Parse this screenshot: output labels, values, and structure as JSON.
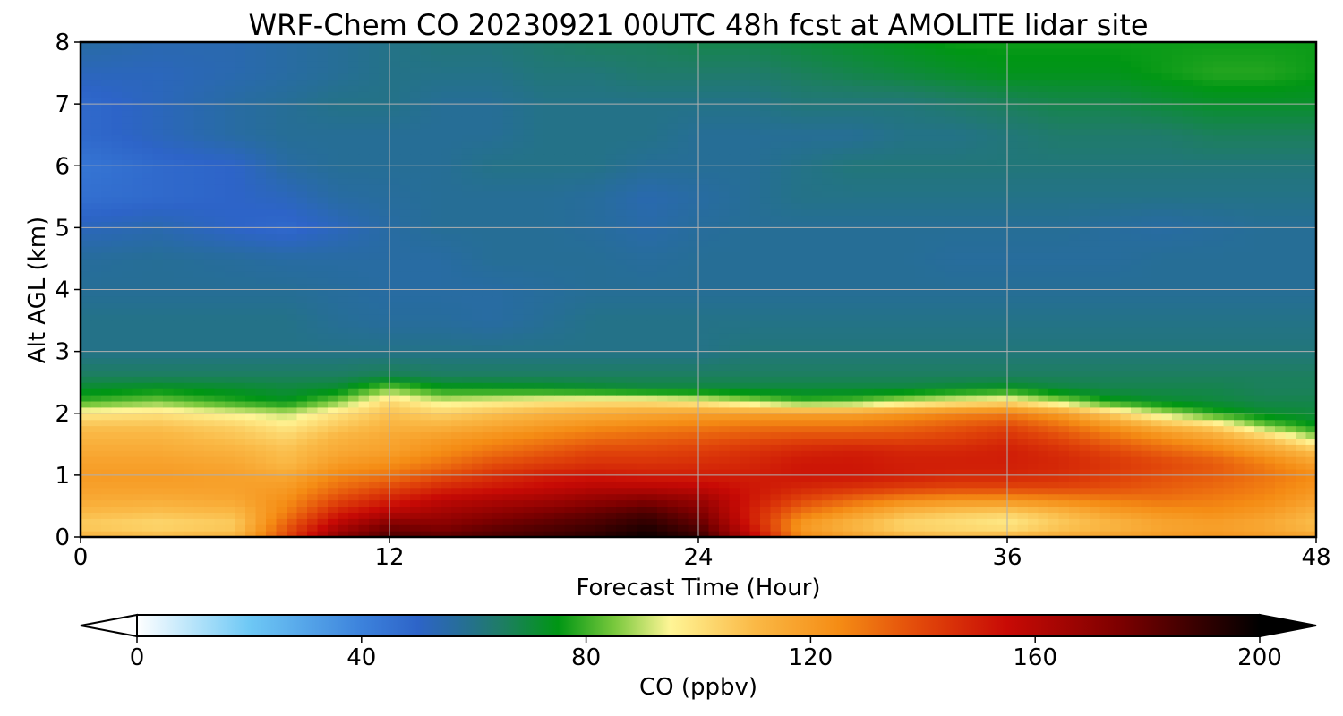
{
  "chart_data": {
    "type": "heatmap",
    "title": "WRF-Chem CO  20230921 00UTC 48h fcst at AMOLITE lidar site",
    "xlabel": "Forecast Time (Hour)",
    "ylabel": "Alt AGL (km)",
    "xlim": [
      0,
      48
    ],
    "ylim": [
      0,
      8
    ],
    "x_ticks": [
      "0",
      "12",
      "24",
      "36",
      "48"
    ],
    "y_ticks": [
      "0",
      "1",
      "2",
      "3",
      "4",
      "5",
      "6",
      "7",
      "8"
    ],
    "grid": true,
    "colorbar": {
      "label": "CO  (ppbv)",
      "range": [
        0,
        200
      ],
      "ticks": [
        "0",
        "40",
        "80",
        "120",
        "160",
        "200"
      ],
      "extend": "both",
      "orientation": "horizontal"
    },
    "x": [
      0,
      3,
      6,
      8,
      10,
      12,
      14,
      16,
      18,
      20,
      22,
      24,
      26,
      28,
      30,
      32,
      34,
      36,
      38,
      40,
      42,
      44,
      46,
      48
    ],
    "y": [
      0,
      0.2,
      0.4,
      0.6,
      0.8,
      1.0,
      1.2,
      1.4,
      1.6,
      1.8,
      2.0,
      2.2,
      2.4,
      2.6,
      3.0,
      3.5,
      4.0,
      4.5,
      5.0,
      5.5,
      6.0,
      6.5,
      7.0,
      7.5,
      8.0
    ],
    "values": [
      [
        112,
        110,
        112,
        140,
        172,
        185,
        182,
        185,
        188,
        192,
        198,
        190,
        160,
        125,
        118,
        112,
        110,
        112,
        115,
        118,
        120,
        122,
        120,
        118
      ],
      [
        105,
        102,
        105,
        135,
        160,
        175,
        172,
        178,
        182,
        186,
        192,
        182,
        152,
        120,
        110,
        102,
        100,
        97,
        105,
        110,
        116,
        118,
        115,
        108
      ],
      [
        110,
        108,
        110,
        128,
        150,
        160,
        165,
        170,
        175,
        180,
        185,
        175,
        150,
        130,
        120,
        110,
        106,
        104,
        110,
        118,
        122,
        124,
        120,
        112
      ],
      [
        115,
        114,
        116,
        124,
        140,
        150,
        158,
        162,
        165,
        170,
        174,
        168,
        152,
        140,
        132,
        125,
        122,
        122,
        125,
        128,
        130,
        128,
        125,
        118
      ],
      [
        118,
        118,
        118,
        120,
        132,
        140,
        148,
        152,
        156,
        160,
        160,
        158,
        152,
        148,
        145,
        142,
        140,
        140,
        140,
        138,
        135,
        132,
        128,
        122
      ],
      [
        120,
        120,
        118,
        116,
        126,
        130,
        138,
        145,
        150,
        152,
        150,
        150,
        150,
        152,
        152,
        150,
        148,
        148,
        146,
        142,
        138,
        135,
        130,
        125
      ],
      [
        118,
        118,
        116,
        110,
        120,
        124,
        130,
        138,
        142,
        145,
        145,
        146,
        148,
        152,
        152,
        150,
        150,
        150,
        148,
        144,
        140,
        136,
        128,
        118
      ],
      [
        115,
        115,
        112,
        108,
        115,
        118,
        124,
        130,
        135,
        140,
        140,
        142,
        145,
        148,
        150,
        148,
        148,
        150,
        146,
        140,
        134,
        128,
        118,
        108
      ],
      [
        112,
        112,
        108,
        104,
        112,
        116,
        120,
        124,
        128,
        132,
        134,
        136,
        138,
        140,
        140,
        140,
        142,
        146,
        140,
        132,
        125,
        118,
        108,
        90
      ],
      [
        108,
        108,
        104,
        98,
        106,
        112,
        112,
        116,
        120,
        124,
        126,
        128,
        130,
        130,
        130,
        132,
        136,
        140,
        132,
        122,
        112,
        104,
        85,
        75
      ],
      [
        98,
        100,
        94,
        90,
        100,
        108,
        104,
        108,
        112,
        114,
        116,
        118,
        118,
        118,
        118,
        122,
        126,
        128,
        120,
        105,
        90,
        78,
        72,
        70
      ],
      [
        80,
        85,
        78,
        74,
        85,
        102,
        92,
        95,
        98,
        100,
        100,
        96,
        88,
        80,
        82,
        90,
        96,
        100,
        88,
        76,
        72,
        70,
        68,
        68
      ],
      [
        72,
        74,
        72,
        70,
        72,
        85,
        76,
        75,
        74,
        72,
        70,
        70,
        70,
        70,
        70,
        70,
        72,
        74,
        70,
        68,
        68,
        68,
        66,
        66
      ],
      [
        66,
        66,
        66,
        66,
        66,
        68,
        66,
        66,
        66,
        66,
        66,
        66,
        66,
        66,
        66,
        66,
        66,
        66,
        66,
        66,
        66,
        66,
        66,
        66
      ],
      [
        60,
        60,
        60,
        60,
        60,
        60,
        60,
        60,
        60,
        60,
        60,
        60,
        62,
        62,
        62,
        62,
        62,
        62,
        62,
        62,
        62,
        62,
        62,
        62
      ],
      [
        60,
        60,
        60,
        60,
        58,
        57,
        57,
        56,
        58,
        60,
        60,
        60,
        60,
        60,
        60,
        60,
        60,
        60,
        60,
        60,
        60,
        60,
        60,
        60
      ],
      [
        58,
        58,
        58,
        58,
        57,
        56,
        56,
        56,
        57,
        58,
        58,
        58,
        58,
        58,
        58,
        58,
        58,
        58,
        58,
        58,
        58,
        58,
        58,
        58
      ],
      [
        57,
        58,
        57,
        56,
        56,
        56,
        56,
        58,
        58,
        58,
        57,
        58,
        58,
        58,
        58,
        58,
        57,
        57,
        57,
        57,
        58,
        58,
        58,
        58
      ],
      [
        52,
        54,
        50,
        48,
        52,
        56,
        58,
        58,
        58,
        57,
        55,
        57,
        58,
        58,
        58,
        58,
        58,
        58,
        58,
        57,
        56,
        57,
        58,
        58
      ],
      [
        46,
        48,
        50,
        52,
        56,
        57,
        58,
        58,
        58,
        57,
        54,
        56,
        58,
        60,
        60,
        60,
        60,
        60,
        60,
        60,
        60,
        60,
        60,
        60
      ],
      [
        44,
        48,
        50,
        56,
        58,
        58,
        58,
        60,
        60,
        60,
        58,
        58,
        58,
        60,
        62,
        62,
        62,
        62,
        62,
        62,
        62,
        62,
        62,
        62
      ],
      [
        48,
        52,
        56,
        58,
        58,
        58,
        58,
        58,
        60,
        60,
        60,
        58,
        58,
        58,
        58,
        60,
        60,
        62,
        64,
        64,
        64,
        66,
        66,
        66
      ],
      [
        48,
        52,
        56,
        58,
        60,
        60,
        58,
        58,
        60,
        60,
        60,
        60,
        60,
        62,
        62,
        62,
        64,
        66,
        68,
        68,
        70,
        72,
        72,
        72
      ],
      [
        52,
        52,
        54,
        56,
        58,
        60,
        60,
        60,
        62,
        62,
        64,
        64,
        64,
        66,
        68,
        70,
        72,
        74,
        74,
        74,
        76,
        78,
        78,
        76
      ],
      [
        56,
        54,
        54,
        56,
        58,
        60,
        62,
        62,
        64,
        66,
        66,
        68,
        68,
        70,
        72,
        74,
        76,
        76,
        76,
        76,
        76,
        76,
        76,
        76
      ]
    ]
  }
}
